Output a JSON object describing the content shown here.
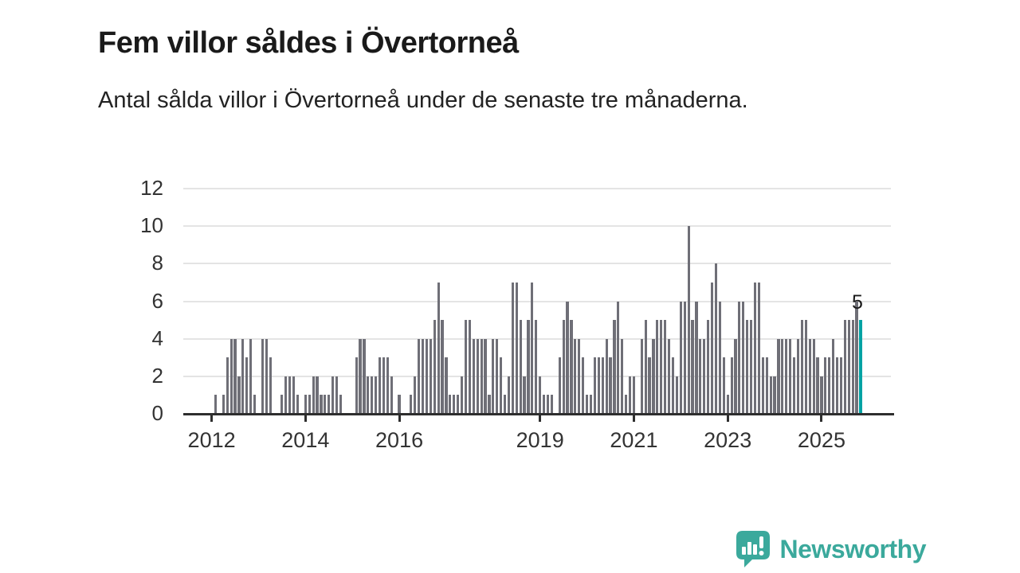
{
  "header": {
    "title": "Fem villor såldes i Övertorneå",
    "subtitle": "Antal sålda villor i Övertorneå under de senaste tre månaderna."
  },
  "chart_data": {
    "type": "bar",
    "title": "Antal sålda villor i Övertorneå under de senaste tre månaderna",
    "frequency": "monthly",
    "x_start": "2012-01",
    "x_end": "2025-11",
    "values": [
      0,
      1,
      0,
      1,
      3,
      4,
      4,
      2,
      4,
      3,
      4,
      1,
      0,
      4,
      4,
      3,
      0,
      0,
      1,
      2,
      2,
      2,
      1,
      0,
      1,
      1,
      2,
      2,
      1,
      1,
      1,
      2,
      2,
      1,
      0,
      0,
      0,
      3,
      4,
      4,
      2,
      2,
      2,
      3,
      3,
      3,
      2,
      0,
      1,
      0,
      0,
      1,
      2,
      4,
      4,
      4,
      4,
      5,
      7,
      5,
      3,
      1,
      1,
      1,
      2,
      5,
      5,
      4,
      4,
      4,
      4,
      1,
      4,
      4,
      3,
      1,
      2,
      7,
      7,
      5,
      2,
      5,
      7,
      5,
      2,
      1,
      1,
      1,
      0,
      3,
      5,
      6,
      5,
      4,
      4,
      3,
      1,
      1,
      3,
      3,
      3,
      4,
      3,
      5,
      6,
      4,
      1,
      2,
      2,
      0,
      4,
      5,
      3,
      4,
      5,
      5,
      5,
      4,
      3,
      2,
      6,
      6,
      10,
      5,
      6,
      4,
      4,
      5,
      7,
      8,
      6,
      3,
      1,
      3,
      4,
      6,
      6,
      5,
      5,
      7,
      7,
      3,
      3,
      2,
      2,
      4,
      4,
      4,
      4,
      3,
      4,
      5,
      5,
      4,
      4,
      3,
      2,
      3,
      3,
      4,
      3,
      3,
      5,
      5,
      5,
      6,
      5
    ],
    "highlight_last": {
      "index": 166,
      "value": 5,
      "label": "5"
    },
    "yticks": [
      0,
      2,
      4,
      6,
      8,
      10,
      12
    ],
    "ylim": [
      0,
      12
    ],
    "xtick_labels": [
      "2012",
      "2014",
      "2016",
      "2019",
      "2021",
      "2023",
      "2025"
    ],
    "xtick_month_indices": [
      0,
      24,
      48,
      84,
      108,
      132,
      156
    ],
    "grid": true,
    "legend": false,
    "colors": {
      "bar": "#6f6f77",
      "highlight": "#00a3a4",
      "gridline": "#e4e4e4",
      "axis": "#2e2e2e",
      "tick_text": "#333333"
    }
  },
  "branding": {
    "logo_text": "Newsworthy",
    "logo_icon": "bar-chart-speech-bubble-icon",
    "color": "#3ba99c"
  }
}
